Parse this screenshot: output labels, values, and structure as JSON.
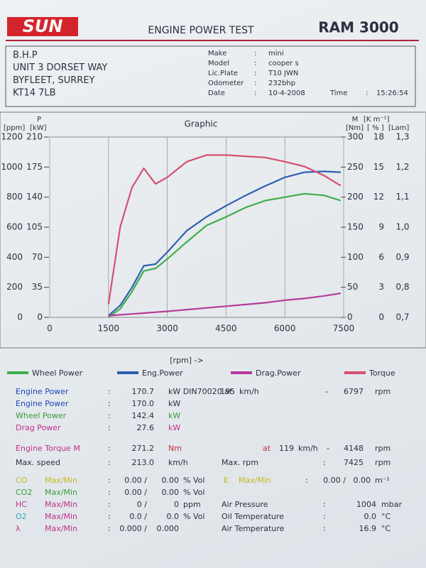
{
  "header": {
    "logo": "SUN",
    "title": "ENGINE POWER TEST",
    "model": "RAM 3000"
  },
  "customer": {
    "lines": [
      "B.H.P",
      "UNIT 3 DORSET WAY",
      "BYFLEET, SURREY",
      "KT14 7LB"
    ]
  },
  "vehicle": {
    "rows": [
      [
        "Make",
        ":",
        "mini"
      ],
      [
        "Model",
        ":",
        "cooper s"
      ],
      [
        "Lic.Plate",
        ":",
        "T10 JWN"
      ],
      [
        "Odometer",
        ":",
        "232bhp"
      ],
      [
        "Date",
        ":",
        "10-4-2008"
      ]
    ],
    "time": [
      "Time",
      ":",
      "15:26:54"
    ]
  },
  "chart_data": {
    "type": "line",
    "title": "Graphic",
    "axis_labels": {
      "left_top": "P",
      "left_ppm": "[ppm]",
      "left_kw": "[kW]",
      "right_top": "M",
      "right_km": "[K m⁻¹]",
      "right_nm": "[Nm]",
      "right_pct": "[ % ]",
      "right_lam": "[Lam]",
      "x": "[rpm] ->"
    },
    "x": [
      1500,
      1800,
      2100,
      2400,
      2700,
      3000,
      3500,
      4000,
      4500,
      5000,
      5500,
      6000,
      6500,
      7000,
      7425
    ],
    "xlim": [
      0,
      7500
    ],
    "xticks": [
      0,
      1500,
      3000,
      4500,
      6000,
      7500
    ],
    "ylim": [
      0,
      210
    ],
    "yticks": [
      0,
      35,
      70,
      105,
      140,
      175,
      210
    ],
    "y2lim": [
      0,
      300
    ],
    "y2ticks": [
      0,
      50,
      100,
      150,
      200,
      250,
      300
    ],
    "y3lim": [
      0,
      1200
    ],
    "y3ticks": [
      0,
      200,
      400,
      600,
      800,
      1000,
      1200
    ],
    "y4lim": [
      0,
      18
    ],
    "y4ticks": [
      0,
      3,
      6,
      9,
      12,
      15,
      18
    ],
    "y5lim": [
      0.7,
      1.3
    ],
    "y5ticks": [
      {
        "value": 0.7,
        "label": "0,7"
      },
      {
        "value": 0.8,
        "label": "0,8"
      },
      {
        "value": 0.9,
        "label": "0,9"
      },
      {
        "value": 1.0,
        "label": "1,0"
      },
      {
        "value": 1.1,
        "label": "1,1"
      },
      {
        "value": 1.2,
        "label": "1,2"
      },
      {
        "value": 1.3,
        "label": "1,3"
      }
    ],
    "grid": true,
    "series": [
      {
        "name": "Wheel Power",
        "color": "#3fae4a",
        "values": [
          0,
          10,
          30,
          54,
          57,
          68,
          88,
          107,
          117,
          128,
          136,
          140,
          144,
          142,
          136
        ]
      },
      {
        "name": "Eng.Power",
        "color": "#2f5fb0",
        "values": [
          2,
          14,
          35,
          60,
          62,
          76,
          101,
          117,
          130,
          142,
          153,
          163,
          169,
          170,
          169
        ]
      },
      {
        "name": "Drag.Power",
        "color": "#b53a9a",
        "values": [
          2,
          3,
          4,
          5,
          6,
          7,
          9,
          11,
          13,
          15,
          17,
          20,
          22,
          25,
          28
        ]
      },
      {
        "name": "Torque",
        "color": "#d65070",
        "axis": "y2",
        "values": [
          22,
          151,
          216,
          248,
          222,
          233,
          259,
          270,
          270,
          268,
          266,
          259,
          251,
          236,
          219
        ]
      }
    ]
  },
  "results": {
    "rows": [
      [
        "Engine Power",
        ":",
        "170.7",
        "kW DIN70020 at",
        "195",
        "km/h",
        "-",
        "6797",
        "rpm"
      ],
      [
        "Engine Power",
        ":",
        "170.0",
        "kW"
      ],
      [
        "Wheel Power",
        ":",
        "142.4",
        "kW"
      ],
      [
        "Drag Power",
        ":",
        "27.6",
        "kW"
      ],
      [
        "Engine Torque M",
        ":",
        "271.2",
        "Nm",
        "at",
        "119",
        "km/h",
        "-",
        "4148",
        "rpm"
      ],
      [
        "Max. speed",
        ":",
        "213.0",
        "km/h",
        "Max. rpm",
        ":",
        "7425",
        "rpm"
      ],
      [
        "CO",
        "Max/Min",
        ":",
        "0.00 /",
        "0.00",
        "% Vol",
        "E",
        "Max/Min",
        ":",
        "0.00 /",
        "0.00",
        "m⁻¹"
      ],
      [
        "CO2",
        "Max/Min",
        ":",
        "0.00 /",
        "0.00",
        "% Vol"
      ],
      [
        "HC",
        "Max/Min",
        ":",
        "0 /",
        "0",
        "ppm",
        "Air Pressure",
        ":",
        "1004",
        "mbar"
      ],
      [
        "O2",
        "Max/Min",
        ":",
        "0.0 /",
        "0.0",
        "% Vol",
        "Oil Temperature",
        ":",
        "0.0",
        "°C"
      ],
      [
        "λ",
        "Max/Min",
        ":",
        "0.000 /",
        "0.000",
        "Air Temperature",
        ":",
        "16.9",
        "°C"
      ]
    ]
  }
}
